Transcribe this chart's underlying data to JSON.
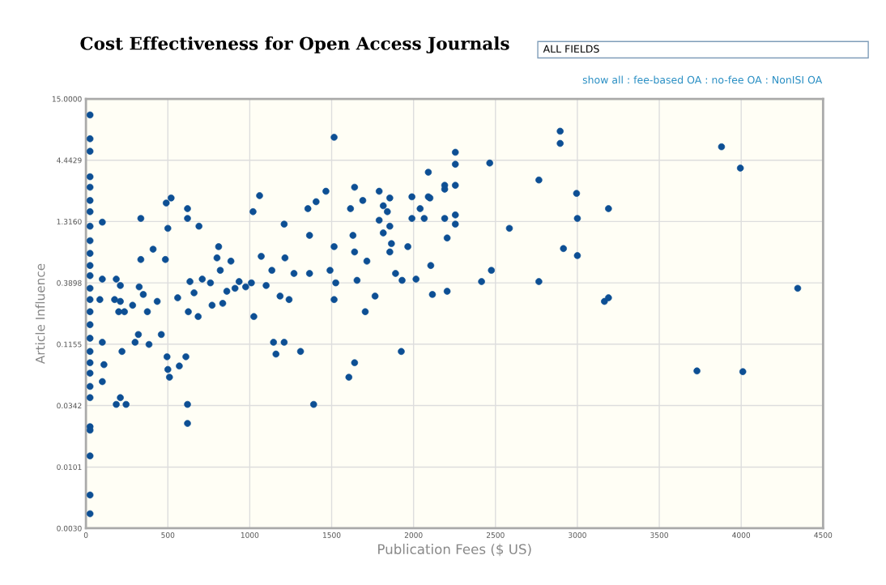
{
  "chart_data": {
    "type": "scatter",
    "title": "Cost Effectiveness for Open Access Journals",
    "xlabel": "Publication Fees ($ US)",
    "ylabel": "Article Influence",
    "annotations": [
      "ALL FIELDS",
      "show all : fee-based OA : no-fee OA : NonISI OA"
    ],
    "log": "y",
    "grid": true,
    "marker": "circle",
    "xlim": [
      0,
      4500
    ],
    "xticks": [
      0,
      500,
      1000,
      1500,
      2000,
      2500,
      3000,
      3500,
      4000,
      4500
    ],
    "ylim": [
      0.003,
      15
    ],
    "yticks": [
      {
        "value": 0.003,
        "label": "0.0030"
      },
      {
        "value": 0.0101,
        "label": "0.0101"
      },
      {
        "value": 0.0342,
        "label": "0.0342"
      },
      {
        "value": 0.1155,
        "label": "0.1155"
      },
      {
        "value": 0.3898,
        "label": "0.3898"
      },
      {
        "value": 1.316,
        "label": "1.3160"
      },
      {
        "value": 4.4429,
        "label": "4.4429"
      },
      {
        "value": 15,
        "label": "15.0000"
      }
    ],
    "series": [
      {
        "color": "#0d4f94",
        "x": [
          25,
          25,
          25,
          25,
          25,
          25,
          25,
          25,
          25,
          25,
          25,
          25,
          25,
          25,
          25,
          25,
          25,
          25,
          25,
          25,
          25,
          25,
          25,
          25,
          25,
          25,
          25,
          100,
          110,
          100,
          100,
          100,
          85,
          185,
          210,
          175,
          210,
          235,
          200,
          220,
          210,
          185,
          245,
          285,
          300,
          320,
          335,
          335,
          325,
          350,
          375,
          385,
          410,
          435,
          460,
          485,
          490,
          500,
          520,
          495,
          500,
          510,
          560,
          570,
          620,
          620,
          610,
          620,
          620,
          625,
          635,
          660,
          685,
          690,
          710,
          760,
          770,
          800,
          810,
          820,
          835,
          860,
          885,
          910,
          935,
          975,
          1010,
          1020,
          1025,
          1060,
          1070,
          1100,
          1135,
          1145,
          1160,
          1185,
          1210,
          1210,
          1215,
          1240,
          1270,
          1310,
          1355,
          1365,
          1365,
          1390,
          1405,
          1465,
          1490,
          1515,
          1515,
          1515,
          1525,
          1605,
          1615,
          1640,
          1630,
          1640,
          1640,
          1655,
          1690,
          1705,
          1715,
          1765,
          1790,
          1790,
          1815,
          1855,
          1855,
          1890,
          1925,
          1930,
          1965,
          1990,
          1990,
          2015,
          2040,
          2065,
          2090,
          2090,
          2100,
          2105,
          2115,
          2190,
          2190,
          2190,
          2205,
          2205,
          2255,
          2255,
          2255,
          2255,
          2255,
          2465,
          2415,
          2475,
          2585,
          2765,
          2765,
          2895,
          2895,
          2915,
          2995,
          3000,
          3000,
          3165,
          3190,
          3190,
          3730,
          3880,
          3995,
          4010,
          4345,
          1840,
          1855,
          1865,
          1815
        ],
        "values": [
          10.9,
          6.8,
          5.3,
          3.2,
          2.6,
          2.0,
          1.6,
          1.2,
          0.9,
          0.7,
          0.55,
          0.45,
          0.35,
          0.28,
          0.22,
          0.17,
          0.13,
          0.1,
          0.08,
          0.065,
          0.05,
          0.04,
          0.0225,
          0.021,
          0.0126,
          0.0058,
          0.004,
          1.3,
          0.077,
          0.055,
          0.12,
          0.42,
          0.28,
          0.42,
          0.37,
          0.28,
          0.27,
          0.22,
          0.22,
          0.1,
          0.04,
          0.035,
          0.035,
          0.25,
          0.12,
          0.14,
          1.4,
          0.62,
          0.36,
          0.31,
          0.22,
          0.115,
          0.76,
          0.27,
          0.14,
          0.62,
          1.9,
          1.15,
          2.1,
          0.09,
          0.07,
          0.06,
          0.29,
          0.075,
          1.4,
          1.7,
          0.09,
          0.035,
          0.024,
          0.22,
          0.4,
          0.32,
          0.2,
          1.2,
          0.42,
          0.39,
          0.25,
          0.64,
          0.8,
          0.5,
          0.26,
          0.33,
          0.6,
          0.35,
          0.4,
          0.36,
          0.39,
          1.6,
          0.2,
          2.2,
          0.66,
          0.37,
          0.5,
          0.12,
          0.095,
          0.3,
          1.25,
          0.12,
          0.64,
          0.28,
          0.47,
          0.1,
          1.7,
          1.0,
          0.47,
          0.035,
          1.95,
          2.4,
          0.5,
          7.0,
          0.8,
          0.28,
          0.39,
          0.06,
          1.7,
          2.6,
          1.0,
          0.72,
          0.08,
          0.41,
          2.0,
          0.22,
          0.6,
          0.3,
          2.4,
          1.35,
          1.05,
          2.1,
          0.72,
          0.47,
          0.1,
          0.41,
          0.8,
          2.15,
          1.4,
          0.42,
          1.7,
          1.4,
          2.15,
          3.5,
          2.1,
          0.55,
          0.31,
          2.7,
          1.4,
          2.5,
          0.95,
          0.33,
          5.2,
          4.1,
          2.7,
          1.5,
          1.25,
          4.2,
          0.4,
          0.5,
          1.15,
          3.0,
          0.4,
          7.9,
          6.2,
          0.77,
          2.3,
          1.4,
          0.67,
          0.27,
          0.29,
          1.7,
          0.068,
          5.8,
          3.8,
          0.067,
          0.35,
          1.6,
          1.2,
          0.85,
          1.8
        ]
      }
    ]
  }
}
